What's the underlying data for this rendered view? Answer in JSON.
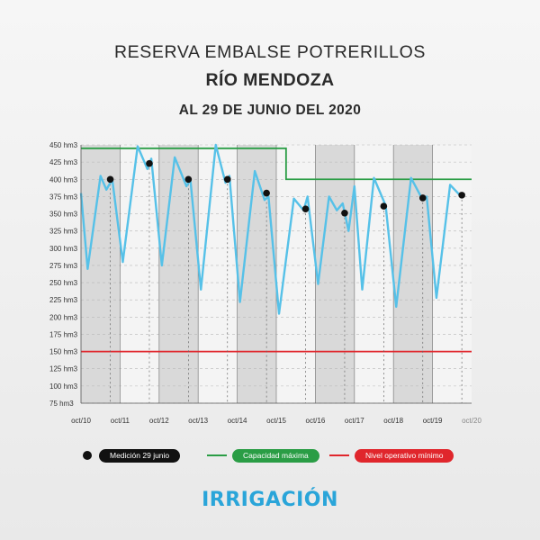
{
  "header": {
    "line1": "RESERVA EMBALSE POTRERILLOS",
    "line2": "RÍO MENDOZA",
    "line3": "AL 29 DE JUNIO DEL 2020"
  },
  "legend": {
    "measure": "Medición 29 junio",
    "capacity": "Capacidad máxima",
    "min_level": "Nivel operativo mínimo"
  },
  "brand": {
    "name": "IRRIGACIÓN"
  },
  "colors": {
    "series": "#56c1e8",
    "capacity": "#2a9d45",
    "min_level": "#e0262c",
    "marker": "#111111",
    "band": "#d9d9d9"
  },
  "chart_data": {
    "type": "line",
    "xlabel": "",
    "ylabel": "",
    "ylim": [
      75,
      450
    ],
    "y_ticks": [
      {
        "value": 450,
        "label": "450 hm3"
      },
      {
        "value": 425,
        "label": "425 hm3"
      },
      {
        "value": 400,
        "label": "400 hm3"
      },
      {
        "value": 375,
        "label": "375 hm3"
      },
      {
        "value": 350,
        "label": "350 hm3"
      },
      {
        "value": 325,
        "label": "325 hm3"
      },
      {
        "value": 300,
        "label": "300 hm3"
      },
      {
        "value": 275,
        "label": "275 hm3"
      },
      {
        "value": 250,
        "label": "250 hm3"
      },
      {
        "value": 225,
        "label": "225 hm3"
      },
      {
        "value": 200,
        "label": "200 hm3"
      },
      {
        "value": 175,
        "label": "175 hm3"
      },
      {
        "value": 150,
        "label": "150 hm3"
      },
      {
        "value": 125,
        "label": "125 hm3"
      },
      {
        "value": 100,
        "label": "100 hm3"
      },
      {
        "value": 75,
        "label": "75 hm3"
      }
    ],
    "x_ticks": [
      "oct/10",
      "oct/11",
      "oct/12",
      "oct/13",
      "oct/14",
      "oct/15",
      "oct/16",
      "oct/17",
      "oct/18",
      "oct/19",
      "oct/20"
    ],
    "series": [
      {
        "values": [
          {
            "x": 2010.75,
            "y": 380
          },
          {
            "x": 2010.92,
            "y": 270
          },
          {
            "x": 2011.25,
            "y": 405
          },
          {
            "x": 2011.4,
            "y": 385
          },
          {
            "x": 2011.55,
            "y": 400
          },
          {
            "x": 2011.82,
            "y": 280
          },
          {
            "x": 2012.2,
            "y": 448
          },
          {
            "x": 2012.45,
            "y": 415
          },
          {
            "x": 2012.55,
            "y": 430
          },
          {
            "x": 2012.82,
            "y": 275
          },
          {
            "x": 2013.15,
            "y": 432
          },
          {
            "x": 2013.45,
            "y": 390
          },
          {
            "x": 2013.55,
            "y": 400
          },
          {
            "x": 2013.82,
            "y": 240
          },
          {
            "x": 2014.2,
            "y": 450
          },
          {
            "x": 2014.45,
            "y": 395
          },
          {
            "x": 2014.55,
            "y": 405
          },
          {
            "x": 2014.82,
            "y": 222
          },
          {
            "x": 2015.2,
            "y": 412
          },
          {
            "x": 2015.45,
            "y": 370
          },
          {
            "x": 2015.55,
            "y": 375
          },
          {
            "x": 2015.82,
            "y": 205
          },
          {
            "x": 2016.2,
            "y": 372
          },
          {
            "x": 2016.45,
            "y": 355
          },
          {
            "x": 2016.55,
            "y": 375
          },
          {
            "x": 2016.82,
            "y": 248
          },
          {
            "x": 2017.1,
            "y": 375
          },
          {
            "x": 2017.3,
            "y": 355
          },
          {
            "x": 2017.45,
            "y": 365
          },
          {
            "x": 2017.6,
            "y": 325
          },
          {
            "x": 2017.75,
            "y": 390
          },
          {
            "x": 2017.95,
            "y": 240
          },
          {
            "x": 2018.25,
            "y": 402
          },
          {
            "x": 2018.55,
            "y": 362
          },
          {
            "x": 2018.82,
            "y": 215
          },
          {
            "x": 2019.2,
            "y": 402
          },
          {
            "x": 2019.5,
            "y": 370
          },
          {
            "x": 2019.6,
            "y": 375
          },
          {
            "x": 2019.85,
            "y": 228
          },
          {
            "x": 2020.2,
            "y": 392
          },
          {
            "x": 2020.45,
            "y": 377
          }
        ]
      }
    ],
    "markers": [
      {
        "x": 2011.5,
        "y": 400
      },
      {
        "x": 2012.5,
        "y": 423
      },
      {
        "x": 2013.5,
        "y": 400
      },
      {
        "x": 2014.5,
        "y": 400
      },
      {
        "x": 2015.5,
        "y": 380
      },
      {
        "x": 2016.5,
        "y": 357
      },
      {
        "x": 2017.5,
        "y": 351
      },
      {
        "x": 2018.5,
        "y": 361
      },
      {
        "x": 2019.5,
        "y": 373
      },
      {
        "x": 2020.5,
        "y": 377
      }
    ],
    "capacity_line": [
      {
        "x": 2010.75,
        "y": 445
      },
      {
        "x": 2016.0,
        "y": 445
      },
      {
        "x": 2016.0,
        "y": 400
      },
      {
        "x": 2020.75,
        "y": 400
      }
    ],
    "min_level_line": [
      {
        "x": 2010.75,
        "y": 150
      },
      {
        "x": 2020.75,
        "y": 150
      }
    ],
    "grid": true
  }
}
